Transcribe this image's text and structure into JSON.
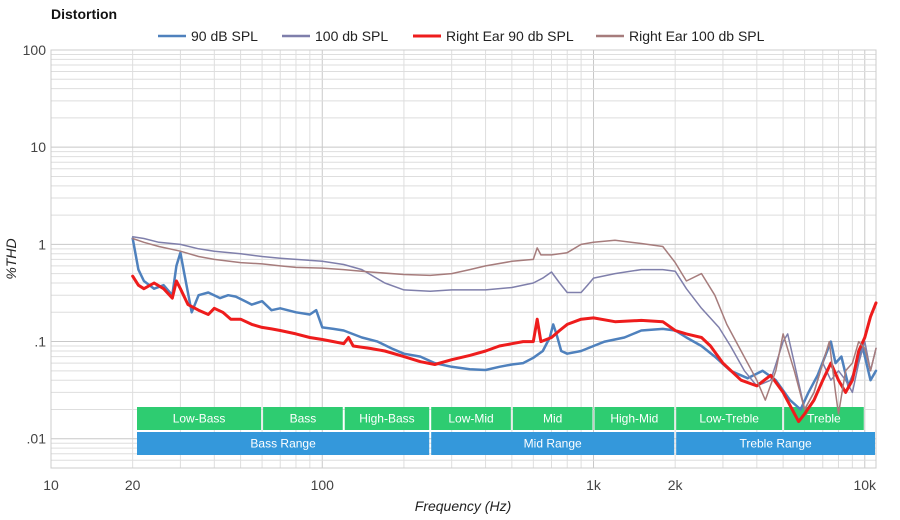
{
  "chart_data": {
    "type": "line",
    "title": "Distortion",
    "xlabel": "Frequency (Hz)",
    "ylabel": "%THD",
    "x_scale": "log",
    "y_scale": "log",
    "xlim": [
      10,
      11000
    ],
    "ylim": [
      0.005,
      100
    ],
    "x_ticks": [
      {
        "value": 10,
        "label": "10"
      },
      {
        "value": 20,
        "label": "20"
      },
      {
        "value": 100,
        "label": "100"
      },
      {
        "value": 1000,
        "label": "1k"
      },
      {
        "value": 2000,
        "label": "2k"
      },
      {
        "value": 10000,
        "label": "10k"
      }
    ],
    "y_ticks": [
      {
        "value": 100,
        "label": "100"
      },
      {
        "value": 10,
        "label": "10"
      },
      {
        "value": 1,
        "label": "1"
      },
      {
        "value": 0.1,
        "label": ".1"
      },
      {
        "value": 0.01,
        "label": ".01"
      }
    ],
    "grid": true,
    "legend_position": "top",
    "series": [
      {
        "name": "90 dB SPL",
        "color": "#4f81bd",
        "width": 2.5,
        "points": [
          [
            20,
            1.15
          ],
          [
            21,
            0.55
          ],
          [
            22,
            0.42
          ],
          [
            24,
            0.35
          ],
          [
            26,
            0.38
          ],
          [
            28,
            0.3
          ],
          [
            29,
            0.6
          ],
          [
            30,
            0.82
          ],
          [
            31,
            0.5
          ],
          [
            33,
            0.2
          ],
          [
            35,
            0.3
          ],
          [
            38,
            0.32
          ],
          [
            42,
            0.28
          ],
          [
            45,
            0.3
          ],
          [
            48,
            0.29
          ],
          [
            52,
            0.26
          ],
          [
            55,
            0.24
          ],
          [
            60,
            0.26
          ],
          [
            65,
            0.21
          ],
          [
            70,
            0.22
          ],
          [
            80,
            0.2
          ],
          [
            90,
            0.19
          ],
          [
            95,
            0.21
          ],
          [
            100,
            0.14
          ],
          [
            110,
            0.135
          ],
          [
            120,
            0.13
          ],
          [
            140,
            0.11
          ],
          [
            160,
            0.1
          ],
          [
            180,
            0.085
          ],
          [
            200,
            0.075
          ],
          [
            230,
            0.07
          ],
          [
            260,
            0.06
          ],
          [
            300,
            0.055
          ],
          [
            350,
            0.052
          ],
          [
            400,
            0.051
          ],
          [
            450,
            0.055
          ],
          [
            500,
            0.058
          ],
          [
            550,
            0.06
          ],
          [
            600,
            0.068
          ],
          [
            650,
            0.08
          ],
          [
            690,
            0.11
          ],
          [
            710,
            0.15
          ],
          [
            730,
            0.12
          ],
          [
            760,
            0.08
          ],
          [
            800,
            0.075
          ],
          [
            900,
            0.08
          ],
          [
            1000,
            0.09
          ],
          [
            1100,
            0.1
          ],
          [
            1300,
            0.11
          ],
          [
            1500,
            0.13
          ],
          [
            1800,
            0.135
          ],
          [
            2000,
            0.13
          ],
          [
            2200,
            0.11
          ],
          [
            2500,
            0.09
          ],
          [
            2800,
            0.07
          ],
          [
            3200,
            0.05
          ],
          [
            3700,
            0.042
          ],
          [
            4200,
            0.05
          ],
          [
            4700,
            0.04
          ],
          [
            5300,
            0.025
          ],
          [
            5800,
            0.02
          ],
          [
            6200,
            0.03
          ],
          [
            6700,
            0.045
          ],
          [
            7200,
            0.075
          ],
          [
            7500,
            0.1
          ],
          [
            7800,
            0.06
          ],
          [
            8200,
            0.07
          ],
          [
            8700,
            0.035
          ],
          [
            9200,
            0.05
          ],
          [
            9800,
            0.09
          ],
          [
            10500,
            0.04
          ],
          [
            11000,
            0.05
          ]
        ]
      },
      {
        "name": "100 db SPL",
        "color": "#7f7fab",
        "width": 1.5,
        "points": [
          [
            20,
            1.2
          ],
          [
            22,
            1.15
          ],
          [
            25,
            1.05
          ],
          [
            30,
            1.0
          ],
          [
            35,
            0.9
          ],
          [
            40,
            0.85
          ],
          [
            50,
            0.8
          ],
          [
            60,
            0.75
          ],
          [
            70,
            0.72
          ],
          [
            80,
            0.7
          ],
          [
            100,
            0.67
          ],
          [
            120,
            0.62
          ],
          [
            140,
            0.55
          ],
          [
            170,
            0.4
          ],
          [
            200,
            0.34
          ],
          [
            250,
            0.33
          ],
          [
            300,
            0.34
          ],
          [
            400,
            0.34
          ],
          [
            500,
            0.36
          ],
          [
            600,
            0.4
          ],
          [
            650,
            0.45
          ],
          [
            700,
            0.52
          ],
          [
            750,
            0.4
          ],
          [
            800,
            0.32
          ],
          [
            900,
            0.32
          ],
          [
            950,
            0.38
          ],
          [
            1000,
            0.45
          ],
          [
            1200,
            0.5
          ],
          [
            1500,
            0.55
          ],
          [
            1800,
            0.55
          ],
          [
            2000,
            0.53
          ],
          [
            2200,
            0.35
          ],
          [
            2500,
            0.22
          ],
          [
            2900,
            0.14
          ],
          [
            3200,
            0.09
          ],
          [
            3600,
            0.05
          ],
          [
            4000,
            0.035
          ],
          [
            4500,
            0.04
          ],
          [
            5000,
            0.1
          ],
          [
            5200,
            0.12
          ],
          [
            5500,
            0.06
          ],
          [
            6000,
            0.02
          ],
          [
            6500,
            0.03
          ],
          [
            7000,
            0.06
          ],
          [
            7500,
            0.04
          ],
          [
            8000,
            0.05
          ],
          [
            8500,
            0.04
          ],
          [
            9000,
            0.03
          ],
          [
            9500,
            0.06
          ],
          [
            10000,
            0.1
          ],
          [
            10500,
            0.05
          ],
          [
            11000,
            0.085
          ]
        ]
      },
      {
        "name": "Right Ear 90 db SPL",
        "color": "#ee1c1c",
        "width": 3,
        "points": [
          [
            20,
            0.47
          ],
          [
            21,
            0.38
          ],
          [
            22,
            0.35
          ],
          [
            24,
            0.4
          ],
          [
            26,
            0.35
          ],
          [
            28,
            0.28
          ],
          [
            29,
            0.42
          ],
          [
            30,
            0.35
          ],
          [
            32,
            0.24
          ],
          [
            35,
            0.21
          ],
          [
            38,
            0.19
          ],
          [
            40,
            0.22
          ],
          [
            43,
            0.2
          ],
          [
            46,
            0.17
          ],
          [
            50,
            0.17
          ],
          [
            55,
            0.15
          ],
          [
            60,
            0.14
          ],
          [
            65,
            0.135
          ],
          [
            70,
            0.13
          ],
          [
            80,
            0.12
          ],
          [
            90,
            0.11
          ],
          [
            100,
            0.105
          ],
          [
            110,
            0.1
          ],
          [
            120,
            0.095
          ],
          [
            125,
            0.11
          ],
          [
            130,
            0.09
          ],
          [
            150,
            0.085
          ],
          [
            170,
            0.08
          ],
          [
            200,
            0.07
          ],
          [
            230,
            0.062
          ],
          [
            260,
            0.058
          ],
          [
            300,
            0.065
          ],
          [
            350,
            0.072
          ],
          [
            400,
            0.08
          ],
          [
            450,
            0.09
          ],
          [
            500,
            0.095
          ],
          [
            550,
            0.1
          ],
          [
            600,
            0.1
          ],
          [
            620,
            0.17
          ],
          [
            640,
            0.1
          ],
          [
            700,
            0.11
          ],
          [
            750,
            0.13
          ],
          [
            800,
            0.15
          ],
          [
            900,
            0.17
          ],
          [
            1000,
            0.175
          ],
          [
            1200,
            0.16
          ],
          [
            1500,
            0.165
          ],
          [
            1800,
            0.16
          ],
          [
            2000,
            0.13
          ],
          [
            2200,
            0.12
          ],
          [
            2500,
            0.11
          ],
          [
            2700,
            0.09
          ],
          [
            3000,
            0.06
          ],
          [
            3500,
            0.04
          ],
          [
            4000,
            0.035
          ],
          [
            4500,
            0.045
          ],
          [
            5000,
            0.03
          ],
          [
            5400,
            0.02
          ],
          [
            5700,
            0.015
          ],
          [
            6000,
            0.018
          ],
          [
            6500,
            0.025
          ],
          [
            7000,
            0.04
          ],
          [
            7500,
            0.06
          ],
          [
            8000,
            0.04
          ],
          [
            8500,
            0.03
          ],
          [
            9000,
            0.04
          ],
          [
            9500,
            0.08
          ],
          [
            10000,
            0.11
          ],
          [
            10500,
            0.18
          ],
          [
            11000,
            0.25
          ]
        ]
      },
      {
        "name": "Right Ear 100 db SPL",
        "color": "#a67c7c",
        "width": 1.5,
        "points": [
          [
            20,
            1.15
          ],
          [
            22,
            1.05
          ],
          [
            25,
            0.95
          ],
          [
            30,
            0.85
          ],
          [
            35,
            0.75
          ],
          [
            40,
            0.7
          ],
          [
            50,
            0.65
          ],
          [
            60,
            0.63
          ],
          [
            70,
            0.6
          ],
          [
            80,
            0.58
          ],
          [
            100,
            0.57
          ],
          [
            120,
            0.55
          ],
          [
            150,
            0.52
          ],
          [
            200,
            0.49
          ],
          [
            250,
            0.48
          ],
          [
            300,
            0.5
          ],
          [
            350,
            0.55
          ],
          [
            400,
            0.6
          ],
          [
            500,
            0.67
          ],
          [
            600,
            0.7
          ],
          [
            620,
            0.92
          ],
          [
            640,
            0.78
          ],
          [
            700,
            0.78
          ],
          [
            800,
            0.82
          ],
          [
            900,
            1.0
          ],
          [
            1000,
            1.05
          ],
          [
            1200,
            1.1
          ],
          [
            1500,
            1.02
          ],
          [
            1800,
            0.95
          ],
          [
            2000,
            0.65
          ],
          [
            2200,
            0.42
          ],
          [
            2500,
            0.5
          ],
          [
            2800,
            0.3
          ],
          [
            3100,
            0.15
          ],
          [
            3500,
            0.08
          ],
          [
            4000,
            0.04
          ],
          [
            4300,
            0.025
          ],
          [
            4700,
            0.05
          ],
          [
            5000,
            0.12
          ],
          [
            5500,
            0.05
          ],
          [
            6000,
            0.02
          ],
          [
            6500,
            0.03
          ],
          [
            7000,
            0.06
          ],
          [
            7400,
            0.1
          ],
          [
            7800,
            0.03
          ],
          [
            8000,
            0.018
          ],
          [
            8500,
            0.05
          ],
          [
            9000,
            0.06
          ],
          [
            9500,
            0.1
          ],
          [
            10000,
            0.085
          ],
          [
            10500,
            0.05
          ],
          [
            11000,
            0.085
          ]
        ]
      }
    ],
    "bands": {
      "row1_color": "#2ecc71",
      "row2_color": "#3498db",
      "row1": [
        {
          "label": "Low-Bass",
          "from": 20,
          "to": 60
        },
        {
          "label": "Bass",
          "from": 60,
          "to": 120
        },
        {
          "label": "High-Bass",
          "from": 120,
          "to": 250
        },
        {
          "label": "Low-Mid",
          "from": 250,
          "to": 500
        },
        {
          "label": "Mid",
          "from": 500,
          "to": 1000
        },
        {
          "label": "High-Mid",
          "from": 1000,
          "to": 2000
        },
        {
          "label": "Low-Treble",
          "from": 2000,
          "to": 5000
        },
        {
          "label": "Treble",
          "from": 5000,
          "to": 10000
        }
      ],
      "row2": [
        {
          "label": "Bass Range",
          "from": 20,
          "to": 250
        },
        {
          "label": "Mid Range",
          "from": 250,
          "to": 2000
        },
        {
          "label": "Treble Range",
          "from": 2000,
          "to": 11000
        }
      ]
    }
  }
}
